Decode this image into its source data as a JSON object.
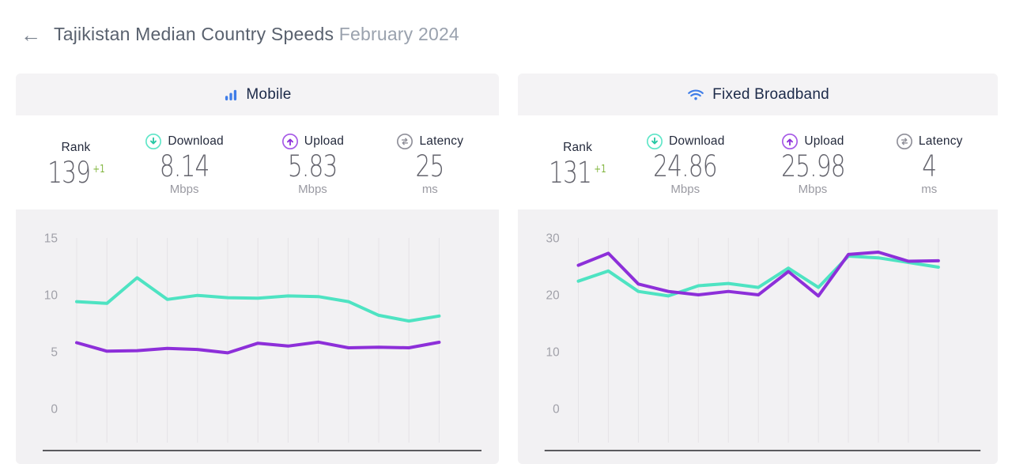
{
  "page": {
    "back_glyph": "←",
    "title_main": "Tajikistan Median Country Speeds",
    "title_period": "February 2024"
  },
  "colors": {
    "download_line": "#4ee3c2",
    "upload_line": "#8d2fd9",
    "grid_line": "#e5e3e7",
    "axis_line": "#5a5a5e",
    "tick_label": "#a1a1a9",
    "positive_change": "#84b742",
    "brand_blue": "#3f7de8",
    "latency_gray": "#8f8f99",
    "card_bg": "#f4f3f5",
    "chart_bg": "#f2f1f3"
  },
  "cards": [
    {
      "id": "mobile",
      "title": "Mobile",
      "icon": "mobile-bars-icon",
      "stats": {
        "rank": {
          "label": "Rank",
          "value": "139",
          "change": "+1"
        },
        "download": {
          "label": "Download",
          "value": "8.14",
          "unit": "Mbps"
        },
        "upload": {
          "label": "Upload",
          "value": "5.83",
          "unit": "Mbps"
        },
        "latency": {
          "label": "Latency",
          "value": "25",
          "unit": "ms"
        }
      }
    },
    {
      "id": "fixed-broadband",
      "title": "Fixed Broadband",
      "icon": "wifi-icon",
      "stats": {
        "rank": {
          "label": "Rank",
          "value": "131",
          "change": "+1"
        },
        "download": {
          "label": "Download",
          "value": "24.86",
          "unit": "Mbps"
        },
        "upload": {
          "label": "Upload",
          "value": "25.98",
          "unit": "Mbps"
        },
        "latency": {
          "label": "Latency",
          "value": "4",
          "unit": "ms"
        }
      }
    }
  ],
  "chart_data": [
    {
      "type": "line",
      "title": "Mobile median speeds trend (13 monthly points ending February 2024)",
      "x": [
        1,
        2,
        3,
        4,
        5,
        6,
        7,
        8,
        9,
        10,
        11,
        12,
        13
      ],
      "x_tick_labels": [],
      "y_ticks": [
        0,
        5,
        10,
        15
      ],
      "ylim": [
        -3,
        15
      ],
      "grid": "vertical-only",
      "legend": "none",
      "series": [
        {
          "name": "Download (Mbps)",
          "color": "#4ee3c2",
          "values": [
            9.4,
            9.25,
            11.5,
            9.6,
            9.95,
            9.75,
            9.7,
            9.9,
            9.85,
            9.4,
            8.2,
            7.7,
            8.14
          ]
        },
        {
          "name": "Upload (Mbps)",
          "color": "#8d2fd9",
          "values": [
            5.8,
            5.05,
            5.1,
            5.3,
            5.2,
            4.9,
            5.75,
            5.5,
            5.85,
            5.35,
            5.4,
            5.35,
            5.83
          ]
        }
      ]
    },
    {
      "type": "line",
      "title": "Fixed broadband median speeds trend (13 monthly points ending February 2024)",
      "x": [
        1,
        2,
        3,
        4,
        5,
        6,
        7,
        8,
        9,
        10,
        11,
        12,
        13
      ],
      "x_tick_labels": [],
      "y_ticks": [
        0,
        10,
        20,
        30
      ],
      "ylim": [
        -6,
        30
      ],
      "grid": "vertical-only",
      "legend": "none",
      "series": [
        {
          "name": "Download (Mbps)",
          "color": "#4ee3c2",
          "values": [
            22.4,
            24.2,
            20.6,
            19.8,
            21.6,
            22.0,
            21.3,
            24.7,
            21.3,
            26.8,
            26.5,
            25.7,
            24.86
          ]
        },
        {
          "name": "Upload (Mbps)",
          "color": "#8d2fd9",
          "values": [
            25.2,
            27.3,
            21.9,
            20.6,
            20.0,
            20.6,
            20.0,
            24.1,
            19.8,
            27.1,
            27.5,
            25.9,
            25.98
          ]
        }
      ]
    }
  ]
}
